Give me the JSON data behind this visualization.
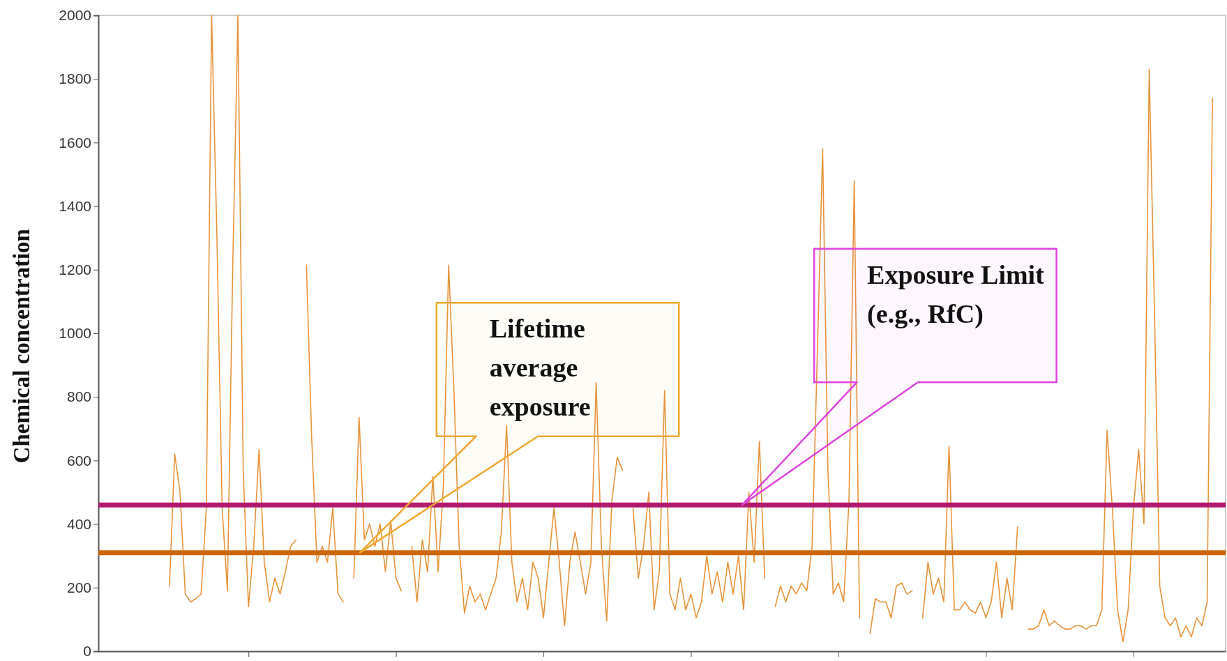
{
  "chart_data": {
    "type": "line",
    "ylabel": "Chemical concentration",
    "categories": [
      null,
      null,
      null,
      null,
      null,
      null,
      null,
      null,
      null,
      null,
      null,
      null,
      null,
      null,
      null,
      null,
      null,
      null,
      null,
      null,
      null,
      null,
      null,
      null,
      null,
      null,
      null,
      null,
      null,
      null,
      null,
      null,
      null,
      null,
      null,
      null,
      null,
      null,
      null,
      null,
      null,
      null,
      null,
      null,
      null,
      null,
      null,
      null,
      null,
      null,
      null,
      null,
      null,
      null,
      null,
      null,
      null,
      null,
      null,
      null,
      null,
      null,
      null,
      null,
      null,
      null,
      null,
      null,
      null,
      null,
      null,
      null,
      null,
      null,
      null,
      null,
      null,
      null,
      null,
      null,
      null,
      null,
      null,
      null,
      null,
      null,
      null,
      null,
      null,
      null,
      null,
      null,
      null,
      null,
      null,
      null,
      null,
      null,
      null,
      null,
      null,
      null,
      null,
      null,
      null,
      null,
      null,
      null,
      null,
      null,
      null,
      null,
      null,
      null,
      null,
      null,
      null,
      null,
      null,
      null,
      null,
      null,
      null,
      null,
      null,
      null,
      null,
      null,
      null,
      null,
      null,
      null,
      null,
      null,
      null,
      null,
      null,
      null,
      null,
      null,
      null,
      null,
      null,
      null,
      null,
      null,
      null,
      null,
      null,
      null,
      null,
      null,
      null,
      null,
      null,
      null,
      null,
      null,
      null,
      null,
      null,
      null,
      null,
      null,
      null,
      null,
      null,
      null,
      null,
      null,
      null,
      null,
      null,
      null,
      null,
      null,
      null,
      null,
      null,
      null,
      null,
      null,
      null,
      null,
      null,
      null,
      null,
      null,
      null,
      null,
      null,
      null,
      null,
      null,
      null,
      null,
      null,
      null,
      null,
      null,
      null,
      null,
      null,
      null,
      null,
      null,
      null,
      null,
      null,
      null,
      null,
      null,
      null,
      null
    ],
    "series": [
      {
        "color": "#e8923a",
        "values": [
          null,
          null,
          null,
          null,
          null,
          null,
          null,
          null,
          null,
          null,
          null,
          null,
          null,
          204,
          620,
          500,
          180,
          155,
          165,
          180,
          450,
          2000,
          1310,
          450,
          190,
          1200,
          2000,
          570,
          140,
          330,
          635,
          280,
          155,
          230,
          180,
          250,
          330,
          350,
          null,
          1215,
          670,
          280,
          330,
          280,
          450,
          180,
          155,
          null,
          230,
          735,
          350,
          400,
          330,
          400,
          250,
          410,
          230,
          190,
          null,
          330,
          155,
          350,
          250,
          550,
          250,
          520,
          1215,
          820,
          330,
          120,
          205,
          155,
          180,
          130,
          180,
          230,
          375,
          710,
          280,
          155,
          230,
          130,
          280,
          230,
          105,
          280,
          450,
          280,
          80,
          280,
          375,
          280,
          180,
          280,
          845,
          330,
          95,
          475,
          610,
          570,
          null,
          450,
          230,
          330,
          500,
          130,
          250,
          820,
          180,
          130,
          230,
          130,
          180,
          105,
          155,
          300,
          180,
          250,
          155,
          280,
          180,
          300,
          130,
          500,
          280,
          660,
          230,
          null,
          140,
          205,
          155,
          205,
          180,
          215,
          190,
          330,
          940,
          1580,
          570,
          180,
          215,
          155,
          475,
          1480,
          105,
          null,
          55,
          165,
          155,
          155,
          105,
          205,
          215,
          180,
          190,
          null,
          105,
          280,
          180,
          230,
          155,
          645,
          130,
          130,
          155,
          130,
          120,
          155,
          105,
          155,
          280,
          105,
          230,
          130,
          390,
          null,
          70,
          70,
          80,
          130,
          80,
          95,
          80,
          70,
          70,
          80,
          80,
          70,
          80,
          80,
          130,
          695,
          450,
          130,
          30,
          130,
          450,
          635,
          400,
          1830,
          1065,
          205,
          105,
          80,
          105,
          45,
          80,
          45,
          105,
          80,
          155,
          1740,
          null,
          null
        ]
      }
    ],
    "ylim": [
      0,
      2000
    ],
    "yticks": [
      0,
      200,
      400,
      600,
      800,
      1000,
      1200,
      1400,
      1600,
      1800,
      2000
    ],
    "annotations": [
      "Lifetime average exposure",
      "Exposure Limit (e.g., RfC)"
    ],
    "ref_lines": [
      {
        "axis": "y",
        "value": 310,
        "color": "#cc6600"
      },
      {
        "axis": "y",
        "value": 460,
        "color": "#b3186f"
      }
    ]
  }
}
